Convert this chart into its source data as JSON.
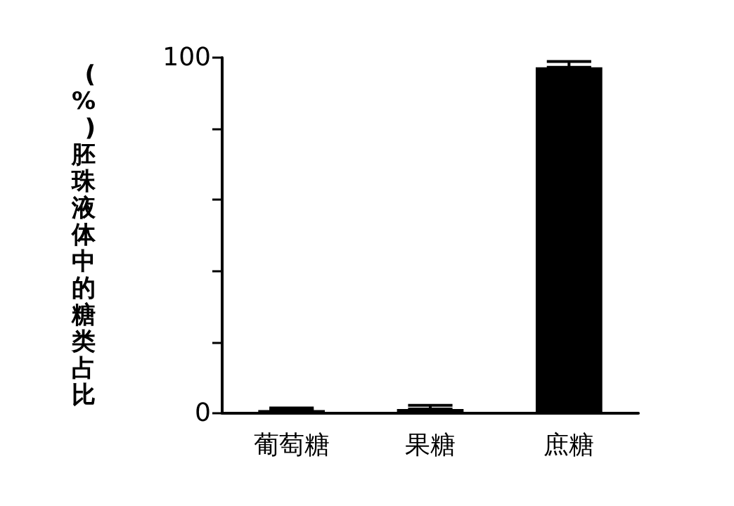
{
  "chart_data": {
    "type": "bar",
    "ylabel": "(%)胚珠液体中的糖类占比",
    "categories": [
      "葡萄糖",
      "果糖",
      "庶糖"
    ],
    "values": [
      0.9,
      1.2,
      97.3
    ],
    "errors": [
      [
        0.9,
        1.5
      ],
      [
        1.2,
        2.2
      ],
      [
        97.3,
        98.9
      ]
    ],
    "color": "#000000",
    "ylim": [
      0,
      100
    ],
    "yticks": [
      0,
      {
        "value": 20,
        "label": null
      },
      {
        "value": 40,
        "label": null
      },
      {
        "value": 60,
        "label": null
      },
      {
        "value": 80,
        "label": null
      },
      100
    ],
    "data_labels": false
  }
}
